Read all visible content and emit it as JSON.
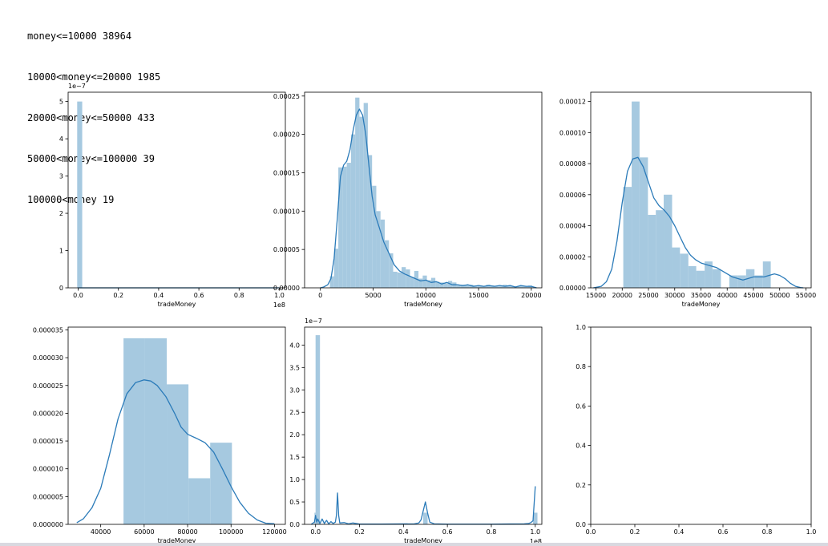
{
  "output_lines": [
    "money<=10000 38964",
    "10000<money<=20000 1985",
    "20000<money<=50000 433",
    "50000<money<=100000 39",
    "100000<money 19"
  ],
  "colors": {
    "hist": "#a6c9e0",
    "kde": "#2b7bb9",
    "axis": "#000000"
  },
  "chart_data": [
    {
      "type": "bar",
      "id": "p1",
      "xlabel": "tradeMoney",
      "x_offset": "1e8",
      "y_offset": "1e−7",
      "xlim": [
        -0.05,
        1.03
      ],
      "ylim": [
        0,
        5.25
      ],
      "xticks": [
        0.0,
        0.2,
        0.4,
        0.6,
        0.8,
        1.0
      ],
      "xtick_labels": [
        "0.0",
        "0.2",
        "0.4",
        "0.6",
        "0.8",
        "1.0"
      ],
      "yticks": [
        0,
        1,
        2,
        3,
        4,
        5
      ],
      "ytick_labels": [
        "0",
        "1",
        "2",
        "3",
        "4",
        "5"
      ],
      "bins": [
        [
          -0.005,
          0.02,
          5.0
        ],
        [
          0.02,
          1.0,
          0.0
        ]
      ],
      "kde": [
        [
          0.0,
          0.0
        ],
        [
          1.0,
          0.0
        ]
      ]
    },
    {
      "type": "bar",
      "id": "p2",
      "xlabel": "tradeMoney",
      "xlim": [
        -1500,
        21000
      ],
      "ylim": [
        0,
        0.000255
      ],
      "xticks": [
        0,
        5000,
        10000,
        15000,
        20000
      ],
      "xtick_labels": [
        "0",
        "5000",
        "10000",
        "15000",
        "20000"
      ],
      "yticks": [
        0,
        5e-05,
        0.0001,
        0.00015,
        0.0002,
        0.00025
      ],
      "ytick_labels": [
        "0.00000",
        "0.00005",
        "0.00010",
        "0.00015",
        "0.00020",
        "0.00025"
      ],
      "bins": [
        [
          900,
          1300,
          1.5e-05
        ],
        [
          1300,
          1700,
          5.1e-05
        ],
        [
          1700,
          2100,
          0.000157
        ],
        [
          2100,
          2500,
          0.000158
        ],
        [
          2500,
          2900,
          0.000163
        ],
        [
          2900,
          3300,
          0.0002
        ],
        [
          3300,
          3700,
          0.000248
        ],
        [
          3700,
          4100,
          0.000223
        ],
        [
          4100,
          4500,
          0.000241
        ],
        [
          4500,
          4900,
          0.000173
        ],
        [
          4900,
          5300,
          0.000133
        ],
        [
          5300,
          5700,
          0.0001
        ],
        [
          5700,
          6100,
          8.9e-05
        ],
        [
          6100,
          6500,
          6.2e-05
        ],
        [
          6500,
          6900,
          4.5e-05
        ],
        [
          6900,
          7300,
          2.1e-05
        ],
        [
          7300,
          7700,
          2e-05
        ],
        [
          7700,
          8100,
          2.7e-05
        ],
        [
          8100,
          8500,
          2.4e-05
        ],
        [
          8500,
          8900,
          1.4e-05
        ],
        [
          8900,
          9300,
          2.2e-05
        ],
        [
          9300,
          9700,
          1.2e-05
        ],
        [
          9700,
          10100,
          1.6e-05
        ],
        [
          10100,
          10500,
          1e-05
        ],
        [
          10500,
          10900,
          1.3e-05
        ],
        [
          10900,
          11300,
          8e-06
        ],
        [
          11300,
          11700,
          7e-06
        ],
        [
          11700,
          12100,
          6e-06
        ],
        [
          12100,
          12500,
          9e-06
        ],
        [
          12500,
          12900,
          7e-06
        ],
        [
          12900,
          13300,
          3e-06
        ],
        [
          13300,
          13700,
          4e-06
        ],
        [
          13700,
          14100,
          3e-06
        ],
        [
          14100,
          14500,
          4e-06
        ],
        [
          14500,
          14900,
          3e-06
        ],
        [
          14900,
          15300,
          3e-06
        ],
        [
          15300,
          15700,
          2e-06
        ],
        [
          15700,
          16100,
          4e-06
        ],
        [
          16100,
          16500,
          3e-06
        ],
        [
          16500,
          16900,
          2e-06
        ],
        [
          16900,
          17300,
          2e-06
        ],
        [
          17300,
          17700,
          4e-06
        ],
        [
          17700,
          18100,
          3e-06
        ],
        [
          18100,
          18500,
          2e-06
        ],
        [
          18500,
          18900,
          2e-06
        ],
        [
          18900,
          19300,
          3e-06
        ],
        [
          19300,
          19700,
          2e-06
        ],
        [
          19700,
          20100,
          3e-06
        ]
      ],
      "kde": [
        [
          0,
          0
        ],
        [
          300,
          1e-06
        ],
        [
          700,
          4e-06
        ],
        [
          1000,
          1.2e-05
        ],
        [
          1300,
          3.8e-05
        ],
        [
          1600,
          9e-05
        ],
        [
          1900,
          0.000145
        ],
        [
          2200,
          0.00016
        ],
        [
          2500,
          0.000165
        ],
        [
          2800,
          0.00018
        ],
        [
          3100,
          0.000205
        ],
        [
          3400,
          0.000225
        ],
        [
          3700,
          0.000233
        ],
        [
          4000,
          0.000225
        ],
        [
          4300,
          0.0002
        ],
        [
          4600,
          0.00016
        ],
        [
          4900,
          0.00012
        ],
        [
          5200,
          9.5e-05
        ],
        [
          5600,
          7.8e-05
        ],
        [
          6000,
          6e-05
        ],
        [
          6500,
          4.5e-05
        ],
        [
          7000,
          3e-05
        ],
        [
          7500,
          2.2e-05
        ],
        [
          8000,
          1.8e-05
        ],
        [
          8500,
          1.5e-05
        ],
        [
          9000,
          1.2e-05
        ],
        [
          9500,
          9e-06
        ],
        [
          10000,
          1e-05
        ],
        [
          10500,
          7e-06
        ],
        [
          11000,
          8e-06
        ],
        [
          11500,
          5e-06
        ],
        [
          12000,
          7e-06
        ],
        [
          12500,
          4e-06
        ],
        [
          13000,
          4e-06
        ],
        [
          13500,
          3e-06
        ],
        [
          14000,
          4e-06
        ],
        [
          14500,
          2e-06
        ],
        [
          15000,
          3e-06
        ],
        [
          15500,
          2e-06
        ],
        [
          16000,
          3e-06
        ],
        [
          16500,
          2e-06
        ],
        [
          17000,
          3e-06
        ],
        [
          17500,
          2e-06
        ],
        [
          18000,
          3e-06
        ],
        [
          18500,
          1e-06
        ],
        [
          19000,
          3e-06
        ],
        [
          19500,
          2e-06
        ],
        [
          20000,
          2e-06
        ],
        [
          20500,
          0.0
        ]
      ]
    },
    {
      "type": "bar",
      "id": "p3",
      "xlabel": "tradeMoney",
      "xlim": [
        14000,
        56000
      ],
      "ylim": [
        0,
        0.000126
      ],
      "xticks": [
        15000,
        20000,
        25000,
        30000,
        35000,
        40000,
        45000,
        50000,
        55000
      ],
      "xtick_labels": [
        "15000",
        "20000",
        "25000",
        "30000",
        "35000",
        "40000",
        "45000",
        "50000",
        "55000"
      ],
      "yticks": [
        0,
        2e-05,
        4e-05,
        6e-05,
        8e-05,
        0.0001,
        0.00012
      ],
      "ytick_labels": [
        "0.00000",
        "0.00002",
        "0.00004",
        "0.00006",
        "0.00008",
        "0.00010",
        "0.00012"
      ],
      "bins": [
        [
          20200,
          21800,
          6.5e-05
        ],
        [
          21800,
          23300,
          0.00012
        ],
        [
          23300,
          24900,
          8.4e-05
        ],
        [
          24900,
          26400,
          4.7e-05
        ],
        [
          26400,
          27900,
          5e-05
        ],
        [
          27900,
          29500,
          6e-05
        ],
        [
          29500,
          31000,
          2.6e-05
        ],
        [
          31000,
          32600,
          2.2e-05
        ],
        [
          32600,
          34100,
          1.4e-05
        ],
        [
          34100,
          35700,
          1.1e-05
        ],
        [
          35700,
          37200,
          1.7e-05
        ],
        [
          37200,
          38800,
          1.2e-05
        ],
        [
          38800,
          40400,
          0.0
        ],
        [
          40400,
          42000,
          8e-06
        ],
        [
          42000,
          43600,
          8e-06
        ],
        [
          43600,
          45200,
          1.2e-05
        ],
        [
          45200,
          46800,
          8e-06
        ],
        [
          46800,
          48300,
          1.7e-05
        ]
      ],
      "kde": [
        [
          14500,
          0
        ],
        [
          16000,
          1e-06
        ],
        [
          17000,
          4e-06
        ],
        [
          18000,
          1.2e-05
        ],
        [
          19000,
          3e-05
        ],
        [
          20000,
          5.5e-05
        ],
        [
          21000,
          7.5e-05
        ],
        [
          22000,
          8.3e-05
        ],
        [
          23000,
          8.4e-05
        ],
        [
          24000,
          7.8e-05
        ],
        [
          25000,
          6.8e-05
        ],
        [
          26000,
          5.8e-05
        ],
        [
          27000,
          5.3e-05
        ],
        [
          28000,
          5e-05
        ],
        [
          29000,
          4.6e-05
        ],
        [
          30000,
          4e-05
        ],
        [
          31000,
          3.3e-05
        ],
        [
          32000,
          2.6e-05
        ],
        [
          33000,
          2.1e-05
        ],
        [
          34000,
          1.8e-05
        ],
        [
          35000,
          1.6e-05
        ],
        [
          36000,
          1.5e-05
        ],
        [
          37000,
          1.4e-05
        ],
        [
          38000,
          1.3e-05
        ],
        [
          39000,
          1.1e-05
        ],
        [
          40000,
          9e-06
        ],
        [
          41000,
          7e-06
        ],
        [
          42000,
          6e-06
        ],
        [
          43000,
          5e-06
        ],
        [
          44000,
          6e-06
        ],
        [
          45000,
          7e-06
        ],
        [
          46000,
          7e-06
        ],
        [
          47000,
          7e-06
        ],
        [
          48000,
          8e-06
        ],
        [
          49000,
          9e-06
        ],
        [
          50000,
          8e-06
        ],
        [
          51000,
          6e-06
        ],
        [
          52000,
          3e-06
        ],
        [
          53000,
          1e-06
        ],
        [
          54000,
          2e-07
        ],
        [
          54500,
          0
        ]
      ]
    },
    {
      "type": "bar",
      "id": "p4",
      "xlabel": "tradeMoney",
      "xlim": [
        25000,
        125000
      ],
      "ylim": [
        0,
        3.55e-05
      ],
      "xticks": [
        40000,
        60000,
        80000,
        100000,
        120000
      ],
      "xtick_labels": [
        "40000",
        "60000",
        "80000",
        "100000",
        "120000"
      ],
      "yticks": [
        0,
        5e-06,
        1e-05,
        1.5e-05,
        2e-05,
        2.5e-05,
        3e-05,
        3.5e-05
      ],
      "ytick_labels": [
        "0.000000",
        "0.000005",
        "0.000010",
        "0.000015",
        "0.000020",
        "0.000025",
        "0.000030",
        "0.000035"
      ],
      "bins": [
        [
          50500,
          60400,
          3.35e-05
        ],
        [
          60400,
          70400,
          3.35e-05
        ],
        [
          70400,
          80400,
          2.52e-05
        ],
        [
          80400,
          90400,
          8.3e-06
        ],
        [
          90400,
          100400,
          1.47e-05
        ]
      ],
      "kde": [
        [
          29000,
          3e-07
        ],
        [
          32000,
          1e-06
        ],
        [
          36000,
          3e-06
        ],
        [
          40000,
          6.5e-06
        ],
        [
          44000,
          1.25e-05
        ],
        [
          48000,
          1.9e-05
        ],
        [
          52000,
          2.35e-05
        ],
        [
          56000,
          2.55e-05
        ],
        [
          60000,
          2.6e-05
        ],
        [
          63000,
          2.58e-05
        ],
        [
          66000,
          2.5e-05
        ],
        [
          70000,
          2.3e-05
        ],
        [
          74000,
          2e-05
        ],
        [
          77000,
          1.75e-05
        ],
        [
          80000,
          1.62e-05
        ],
        [
          84000,
          1.55e-05
        ],
        [
          88000,
          1.47e-05
        ],
        [
          92000,
          1.3e-05
        ],
        [
          96000,
          1e-05
        ],
        [
          100000,
          6.8e-06
        ],
        [
          104000,
          4e-06
        ],
        [
          108000,
          2e-06
        ],
        [
          112000,
          8e-07
        ],
        [
          116000,
          2e-07
        ],
        [
          120000,
          1e-07
        ]
      ]
    },
    {
      "type": "bar",
      "id": "p5",
      "xlabel": "tradeMoney",
      "x_offset": "1e8",
      "y_offset": "1e−7",
      "xlim": [
        -0.05,
        1.03
      ],
      "ylim": [
        0,
        4.4
      ],
      "xticks": [
        0.0,
        0.2,
        0.4,
        0.6,
        0.8,
        1.0
      ],
      "xtick_labels": [
        "0.0",
        "0.2",
        "0.4",
        "0.6",
        "0.8",
        "1.0"
      ],
      "yticks": [
        0,
        0.5,
        1.0,
        1.5,
        2.0,
        2.5,
        3.0,
        3.5,
        4.0
      ],
      "ytick_labels": [
        "0.0",
        "0.5",
        "1.0",
        "1.5",
        "2.0",
        "2.5",
        "3.0",
        "3.5",
        "4.0"
      ],
      "bins": [
        [
          -0.005,
          0.0,
          0.26
        ],
        [
          0.0,
          0.02,
          4.22
        ],
        [
          0.49,
          0.51,
          0.26
        ],
        [
          0.99,
          1.01,
          0.26
        ]
      ],
      "kde": [
        [
          -0.02,
          0
        ],
        [
          -0.005,
          0.05
        ],
        [
          0.0,
          0.2
        ],
        [
          0.005,
          0.05
        ],
        [
          0.01,
          0.12
        ],
        [
          0.02,
          0.02
        ],
        [
          0.03,
          0.12
        ],
        [
          0.04,
          0.02
        ],
        [
          0.05,
          0.09
        ],
        [
          0.06,
          0.01
        ],
        [
          0.07,
          0.06
        ],
        [
          0.08,
          0.02
        ],
        [
          0.09,
          0.05
        ],
        [
          0.095,
          0.2
        ],
        [
          0.1,
          0.7
        ],
        [
          0.105,
          0.2
        ],
        [
          0.11,
          0.03
        ],
        [
          0.13,
          0.04
        ],
        [
          0.15,
          0.01
        ],
        [
          0.17,
          0.03
        ],
        [
          0.2,
          0.005
        ],
        [
          0.3,
          0.005
        ],
        [
          0.45,
          0.01
        ],
        [
          0.47,
          0.03
        ],
        [
          0.48,
          0.1
        ],
        [
          0.49,
          0.3
        ],
        [
          0.5,
          0.5
        ],
        [
          0.51,
          0.25
        ],
        [
          0.52,
          0.05
        ],
        [
          0.54,
          0.01
        ],
        [
          0.6,
          0.003
        ],
        [
          0.8,
          0.003
        ],
        [
          0.95,
          0.01
        ],
        [
          0.97,
          0.02
        ],
        [
          0.98,
          0.04
        ],
        [
          0.99,
          0.08
        ],
        [
          1.0,
          0.85
        ]
      ]
    },
    {
      "type": "bar",
      "id": "p6",
      "xlabel": "",
      "xlim": [
        0,
        1
      ],
      "ylim": [
        0,
        1
      ],
      "xticks": [
        0,
        0.2,
        0.4,
        0.6,
        0.8,
        1.0
      ],
      "xtick_labels": [
        "0.0",
        "0.2",
        "0.4",
        "0.6",
        "0.8",
        "1.0"
      ],
      "yticks": [
        0,
        0.2,
        0.4,
        0.6,
        0.8,
        1.0
      ],
      "ytick_labels": [
        "0.0",
        "0.2",
        "0.4",
        "0.6",
        "0.8",
        "1.0"
      ],
      "bins": [],
      "kde": []
    }
  ]
}
